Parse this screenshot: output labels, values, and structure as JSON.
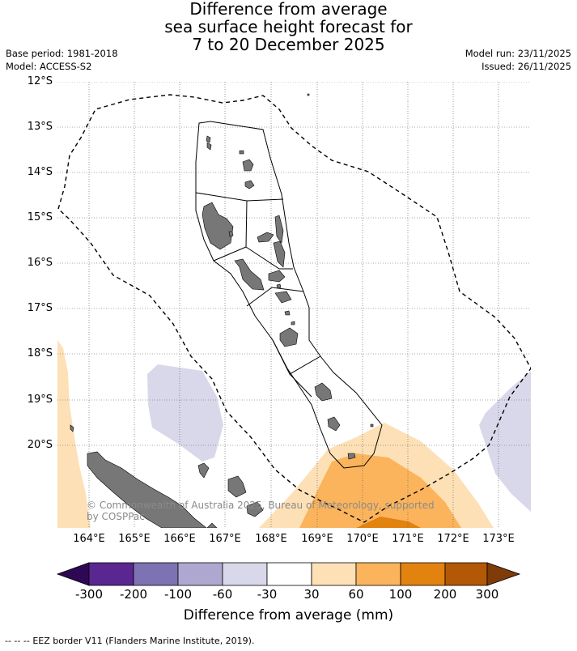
{
  "title": {
    "line1": "Difference from average",
    "line2": "sea surface height forecast for",
    "line3": "7 to 20 December 2025"
  },
  "meta_left": {
    "base_period": "Base period: 1981-2018",
    "model": "Model: ACCESS-S2"
  },
  "meta_right": {
    "model_run": "Model run: 23/11/2025",
    "issued": "Issued: 26/11/2025"
  },
  "map": {
    "lat_labels": [
      "12°S",
      "13°S",
      "14°S",
      "15°S",
      "16°S",
      "17°S",
      "18°S",
      "19°S",
      "20°S"
    ],
    "lon_labels": [
      "164°E",
      "165°E",
      "166°E",
      "167°E",
      "168°E",
      "169°E",
      "170°E",
      "171°E",
      "172°E",
      "173°E"
    ],
    "copyright_line1": "© Commonwealth of Australia 2025, Bureau of Meteorology, supported",
    "copyright_line2": "by COSPPac"
  },
  "colorbar": {
    "ticks": [
      "-300",
      "-200",
      "-100",
      "-60",
      "-30",
      "30",
      "60",
      "100",
      "200",
      "300"
    ],
    "colors": [
      "#2e0854",
      "#5a2690",
      "#7d72b2",
      "#aea8d1",
      "#d8d8ea",
      "#ffffff",
      "#fde0b6",
      "#fbb45c",
      "#e2820f",
      "#b35806",
      "#7f3b08"
    ],
    "title": "Difference from average (mm)"
  },
  "legend": {
    "eez_symbol": "--  --  --",
    "eez_text": "EEZ border V11 (Flanders Marine Institute, 2019)."
  }
}
